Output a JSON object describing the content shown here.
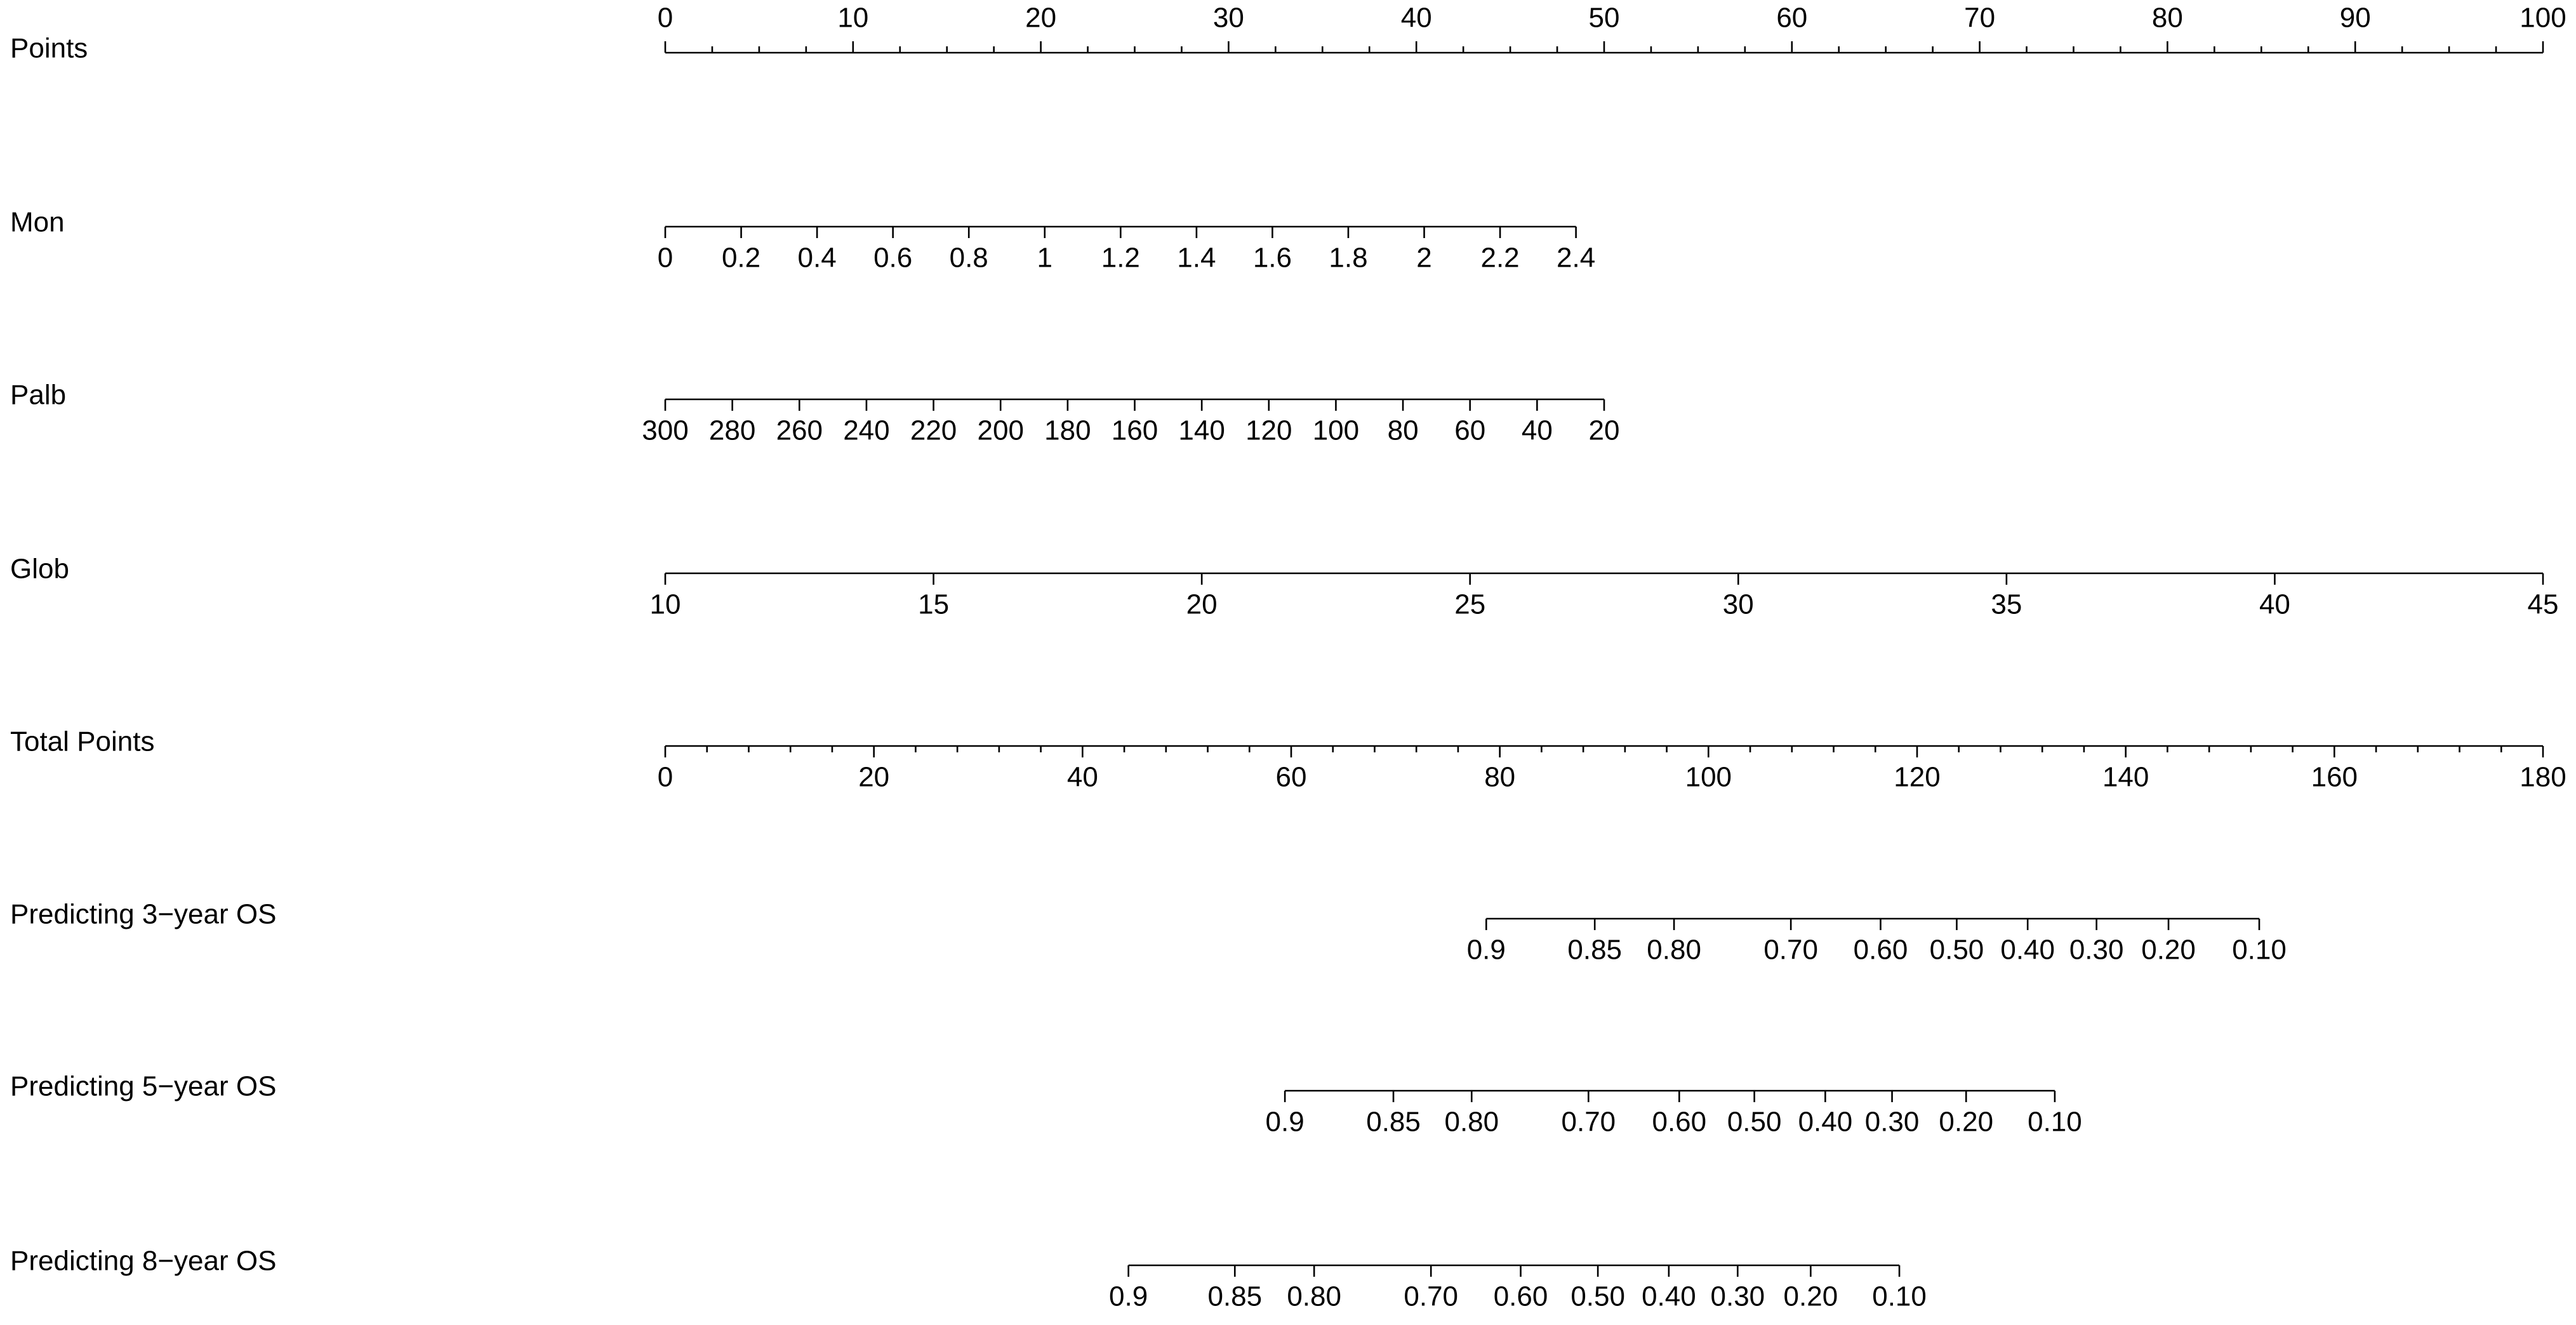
{
  "chart_data": {
    "type": "nomogram",
    "rows": [
      {
        "label": "Points",
        "side": "top",
        "lim": [
          0,
          100
        ],
        "points_lim": [
          0,
          100
        ],
        "ticks": [
          0,
          10,
          20,
          30,
          40,
          50,
          60,
          70,
          80,
          90,
          100
        ],
        "minor_ticks": [
          2.5,
          5,
          7.5,
          12.5,
          15,
          17.5,
          22.5,
          25,
          27.5,
          32.5,
          35,
          37.5,
          42.5,
          45,
          47.5,
          52.5,
          55,
          57.5,
          62.5,
          65,
          67.5,
          72.5,
          75,
          77.5,
          82.5,
          85,
          87.5,
          92.5,
          95,
          97.5
        ]
      },
      {
        "label": "Mon",
        "lim": [
          0,
          2.4
        ],
        "points_lim": [
          0,
          48.5
        ],
        "ticks": [
          0,
          0.2,
          0.4,
          0.6,
          0.8,
          1,
          1.2,
          1.4,
          1.6,
          1.8,
          2,
          2.2,
          2.4
        ]
      },
      {
        "label": "Palb",
        "lim": [
          300,
          20
        ],
        "points_lim": [
          0,
          50
        ],
        "ticks": [
          300,
          280,
          260,
          240,
          220,
          200,
          180,
          160,
          140,
          120,
          100,
          80,
          60,
          40,
          20
        ]
      },
      {
        "label": "Glob",
        "lim": [
          10,
          45
        ],
        "points_lim": [
          0,
          100
        ],
        "ticks": [
          10,
          15,
          20,
          25,
          30,
          35,
          40,
          45
        ]
      },
      {
        "label": "Total Points",
        "lim": [
          0,
          180
        ],
        "points_lim": [
          0,
          100
        ],
        "ticks": [
          0,
          20,
          40,
          60,
          80,
          100,
          120,
          140,
          160,
          180
        ],
        "minor_ticks": [
          4,
          8,
          12,
          16,
          24,
          28,
          32,
          36,
          44,
          48,
          52,
          56,
          64,
          68,
          72,
          76,
          84,
          88,
          92,
          96,
          104,
          108,
          112,
          116,
          124,
          128,
          132,
          136,
          144,
          148,
          152,
          156,
          164,
          168,
          172,
          176
        ]
      },
      {
        "label": "Predicting 3−year OS",
        "ticks": [
          0.9,
          0.85,
          {
            "value": 0.8,
            "label": "0.80"
          },
          {
            "value": 0.7,
            "label": "0.70"
          },
          {
            "value": 0.6,
            "label": "0.60"
          },
          {
            "value": 0.5,
            "label": "0.50"
          },
          {
            "value": 0.4,
            "label": "0.40"
          },
          {
            "value": 0.3,
            "label": "0.30"
          },
          {
            "value": 0.2,
            "label": "0.20"
          },
          {
            "value": 0.1,
            "label": "0.10"
          }
        ],
        "total_points": [
          78.7,
          89.1,
          96.7,
          107.9,
          116.5,
          123.8,
          130.6,
          137.2,
          144.1,
          152.8
        ]
      },
      {
        "label": "Predicting 5−year OS",
        "ticks": [
          0.9,
          0.85,
          {
            "value": 0.8,
            "label": "0.80"
          },
          {
            "value": 0.7,
            "label": "0.70"
          },
          {
            "value": 0.6,
            "label": "0.60"
          },
          {
            "value": 0.5,
            "label": "0.50"
          },
          {
            "value": 0.4,
            "label": "0.40"
          },
          {
            "value": 0.3,
            "label": "0.30"
          },
          {
            "value": 0.2,
            "label": "0.20"
          },
          {
            "value": 0.1,
            "label": "0.10"
          }
        ],
        "total_points": [
          59.4,
          69.8,
          77.3,
          88.5,
          97.2,
          104.4,
          111.2,
          117.6,
          124.7,
          133.2
        ]
      },
      {
        "label": "Predicting 8−year OS",
        "ticks": [
          0.9,
          0.85,
          {
            "value": 0.8,
            "label": "0.80"
          },
          {
            "value": 0.7,
            "label": "0.70"
          },
          {
            "value": 0.6,
            "label": "0.60"
          },
          {
            "value": 0.5,
            "label": "0.50"
          },
          {
            "value": 0.4,
            "label": "0.40"
          },
          {
            "value": 0.3,
            "label": "0.30"
          },
          {
            "value": 0.2,
            "label": "0.20"
          },
          {
            "value": 0.1,
            "label": "0.10"
          }
        ],
        "total_points": [
          44.4,
          54.6,
          62.2,
          73.4,
          82.0,
          89.4,
          96.2,
          102.8,
          109.8,
          118.3
        ]
      }
    ]
  }
}
